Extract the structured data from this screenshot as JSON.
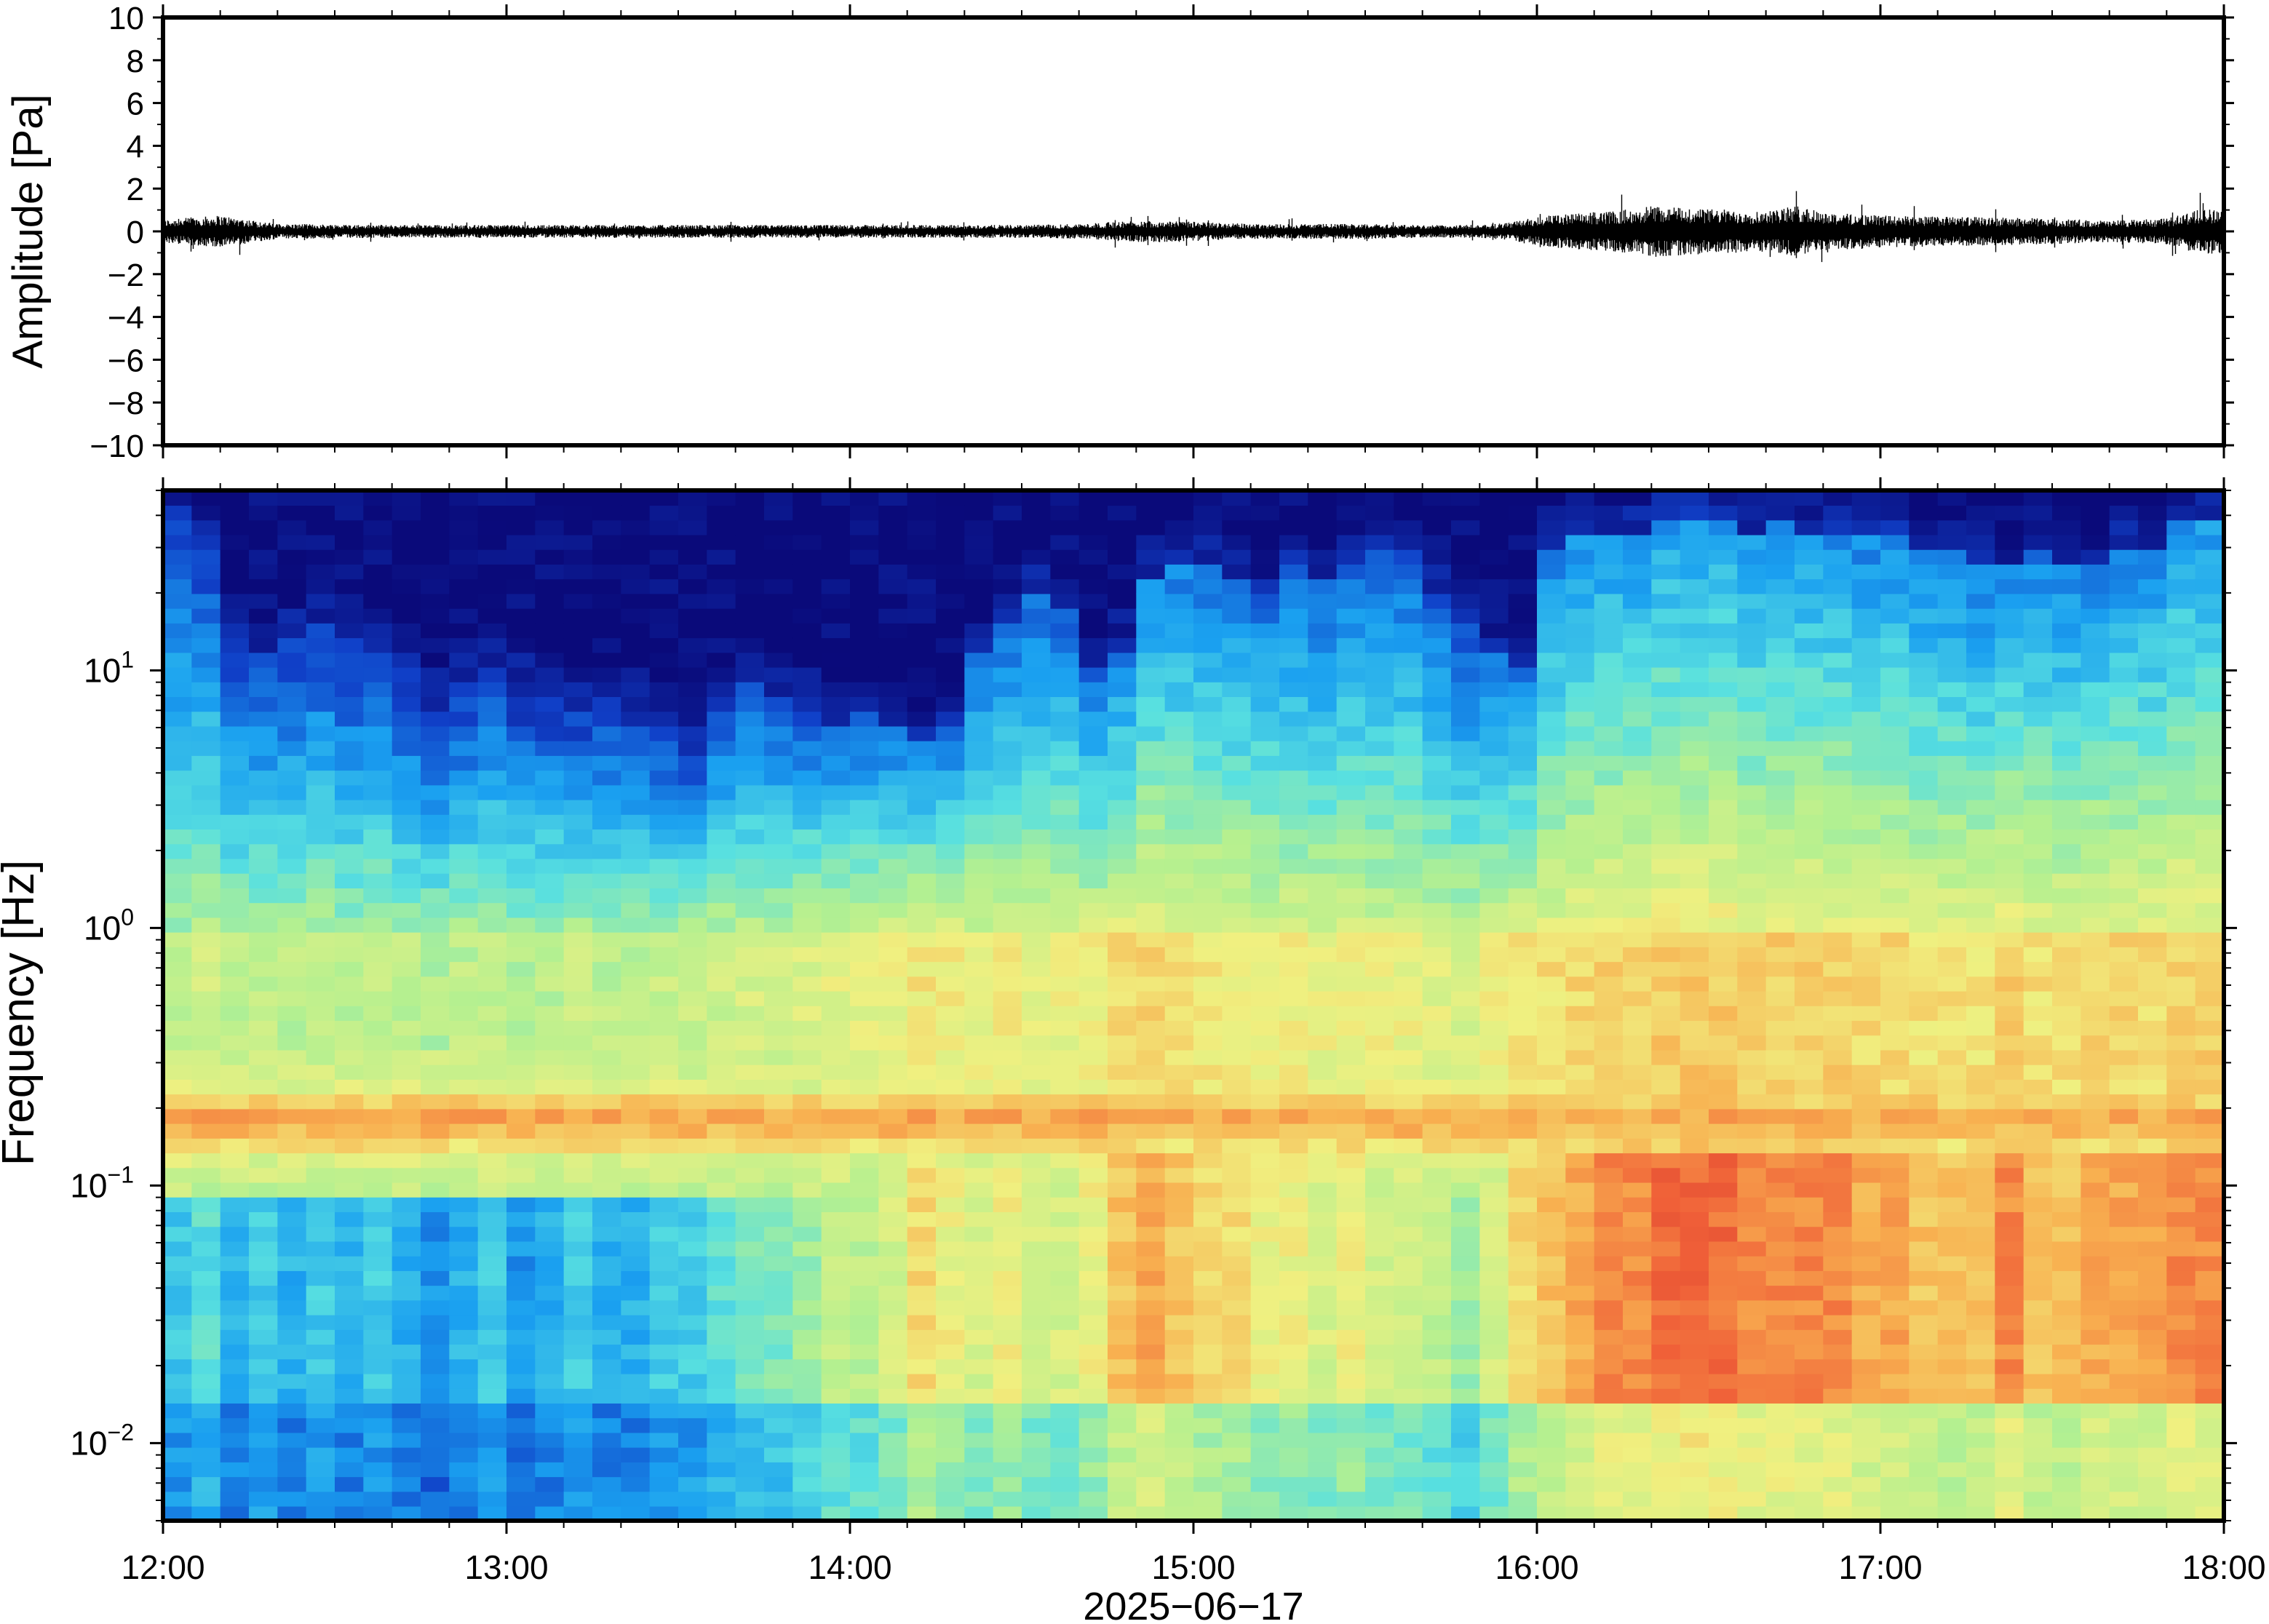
{
  "chart_data": [
    {
      "type": "line",
      "ylabel": "Amplitude [Pa]",
      "ylim": [
        -10,
        10
      ],
      "yticks": [
        10,
        8,
        6,
        4,
        2,
        0,
        -2,
        -4,
        -6,
        -8,
        -10
      ],
      "ytick_labels": [
        "10",
        "8",
        "6",
        "4",
        "2",
        "0",
        "−2",
        "−4",
        "−6",
        "−8",
        "−10"
      ],
      "x_range": [
        "12:00",
        "18:00"
      ],
      "line_color": "#000000",
      "envelope": {
        "description_times": [
          "12:00",
          "12:10",
          "12:20",
          "12:40",
          "13:00",
          "13:30",
          "14:00",
          "14:30",
          "14:40",
          "14:50",
          "14:55",
          "15:00",
          "15:10",
          "15:30",
          "15:40",
          "15:50",
          "15:55",
          "16:00",
          "16:10",
          "16:15",
          "16:20",
          "16:30",
          "16:40",
          "16:45",
          "16:50",
          "17:00",
          "17:10",
          "17:20",
          "17:30",
          "17:40",
          "17:50",
          "17:55",
          "18:00"
        ],
        "amplitude_pa": [
          0.55,
          0.75,
          0.35,
          0.3,
          0.3,
          0.3,
          0.3,
          0.3,
          0.35,
          0.5,
          0.5,
          0.45,
          0.35,
          0.35,
          0.3,
          0.3,
          0.4,
          0.7,
          0.9,
          1.0,
          1.2,
          1.05,
          0.95,
          1.2,
          0.9,
          0.75,
          0.7,
          0.65,
          0.6,
          0.5,
          0.6,
          1.0,
          1.1
        ]
      }
    },
    {
      "type": "heatmap",
      "ylabel": "Frequency [Hz]",
      "xlabel": "2025−06−17",
      "y_scale": "log",
      "ylim_hz": [
        0.005,
        50
      ],
      "yticks": [
        {
          "value": 0.01,
          "base": "10",
          "exp": "−2"
        },
        {
          "value": 0.1,
          "base": "10",
          "exp": "−1"
        },
        {
          "value": 1,
          "base": "10",
          "exp": "0"
        },
        {
          "value": 10,
          "base": "10",
          "exp": "1"
        }
      ],
      "xticks": [
        "12:00",
        "13:00",
        "14:00",
        "15:00",
        "16:00",
        "17:00",
        "18:00"
      ],
      "colormap": "jet",
      "colors": [
        "#0a0a7a",
        "#1040c8",
        "#1aa0f0",
        "#58e0e0",
        "#b4f090",
        "#f0f080",
        "#f8b050",
        "#f06038",
        "#c82828"
      ],
      "dominant_band_hz": 0.18,
      "column_starts": [
        "12:00",
        "12:05",
        "12:10",
        "12:15",
        "12:20",
        "12:25",
        "12:30",
        "12:35",
        "12:40",
        "12:45",
        "12:50",
        "12:55",
        "13:00",
        "13:05",
        "13:10",
        "13:15",
        "13:20",
        "13:25",
        "13:30",
        "13:35",
        "13:40",
        "13:45",
        "13:50",
        "13:55",
        "14:00",
        "14:05",
        "14:10",
        "14:15",
        "14:20",
        "14:25",
        "14:30",
        "14:35",
        "14:40",
        "14:45",
        "14:50",
        "14:55",
        "15:00",
        "15:05",
        "15:10",
        "15:15",
        "15:20",
        "15:25",
        "15:30",
        "15:35",
        "15:40",
        "15:45",
        "15:50",
        "15:55",
        "16:00",
        "16:05",
        "16:10",
        "16:15",
        "16:20",
        "16:25",
        "16:30",
        "16:35",
        "16:40",
        "16:45",
        "16:50",
        "16:55",
        "17:00",
        "17:05",
        "17:10",
        "17:15",
        "17:20",
        "17:25",
        "17:30",
        "17:35",
        "17:40",
        "17:45",
        "17:50",
        "17:55"
      ],
      "high_freq_cutoff_hz": [
        40,
        30,
        15,
        12,
        14,
        15,
        13,
        12,
        10,
        8,
        9,
        10,
        9,
        8,
        7,
        8,
        7,
        6,
        5,
        8,
        9,
        8,
        7,
        6,
        7,
        6,
        5,
        6,
        12,
        15,
        20,
        18,
        10,
        12,
        22,
        25,
        25,
        22,
        20,
        25,
        22,
        25,
        30,
        28,
        20,
        15,
        12,
        10,
        30,
        35,
        35,
        35,
        40,
        40,
        40,
        35,
        38,
        35,
        35,
        32,
        35,
        30,
        28,
        25,
        25,
        30,
        25,
        25,
        30,
        30,
        40,
        40
      ],
      "low_freq_level": [
        0.35,
        0.4,
        0.3,
        0.35,
        0.3,
        0.35,
        0.3,
        0.35,
        0.3,
        0.25,
        0.3,
        0.35,
        0.25,
        0.3,
        0.35,
        0.3,
        0.3,
        0.35,
        0.35,
        0.4,
        0.45,
        0.45,
        0.5,
        0.55,
        0.55,
        0.6,
        0.7,
        0.65,
        0.6,
        0.65,
        0.6,
        0.6,
        0.65,
        0.75,
        0.8,
        0.75,
        0.7,
        0.7,
        0.65,
        0.65,
        0.6,
        0.65,
        0.6,
        0.6,
        0.55,
        0.5,
        0.6,
        0.7,
        0.75,
        0.8,
        0.85,
        0.85,
        0.9,
        0.9,
        0.9,
        0.85,
        0.85,
        0.85,
        0.85,
        0.8,
        0.8,
        0.75,
        0.75,
        0.75,
        0.85,
        0.75,
        0.75,
        0.8,
        0.8,
        0.8,
        0.85,
        0.85
      ]
    }
  ]
}
